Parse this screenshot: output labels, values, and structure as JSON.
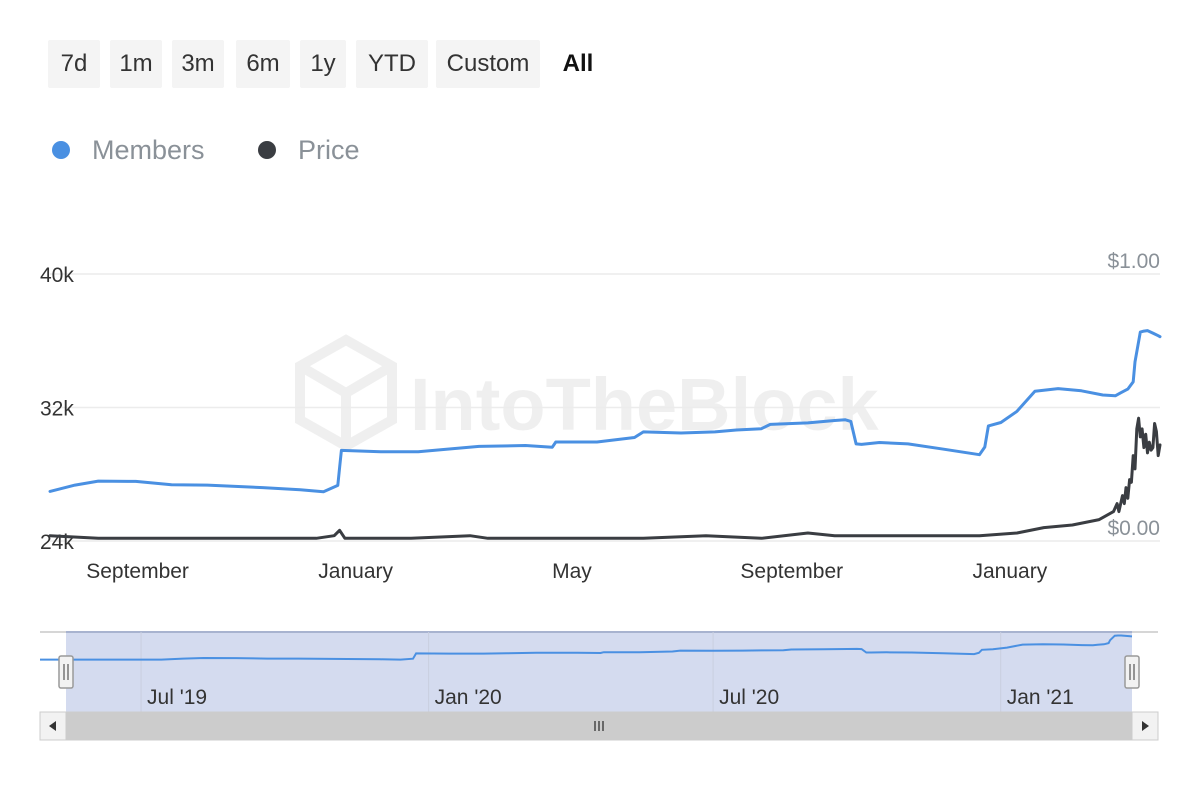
{
  "range_selector": {
    "buttons": [
      {
        "label": "7d",
        "active": false
      },
      {
        "label": "1m",
        "active": false
      },
      {
        "label": "3m",
        "active": false
      },
      {
        "label": "6m",
        "active": false
      },
      {
        "label": "1y",
        "active": false
      },
      {
        "label": "YTD",
        "active": false
      },
      {
        "label": "Custom",
        "active": false
      },
      {
        "label": "All",
        "active": true
      }
    ]
  },
  "watermark": "IntoTheBlock",
  "colors": {
    "members": "#4a90e2",
    "price": "#3a3d42",
    "navigator_fill": "#d4dbef",
    "grid": "#ececec"
  },
  "chart_data": {
    "type": "line",
    "legend": [
      {
        "name": "Members",
        "color": "#4a90e2"
      },
      {
        "name": "Price",
        "color": "#3a3d42"
      }
    ],
    "x_tick_labels": [
      "September",
      "January",
      "May",
      "September",
      "January"
    ],
    "x_ticks": [
      "2019-09-01",
      "2020-01-01",
      "2020-05-01",
      "2020-09-01",
      "2021-01-01"
    ],
    "x_range": [
      "2019-07-14",
      "2021-03-26"
    ],
    "y_left": {
      "range": [
        24000,
        40000
      ],
      "ticks": [
        24000,
        32000,
        40000
      ],
      "tick_labels": [
        "24k",
        "32k",
        "40k"
      ]
    },
    "y_right": {
      "range": [
        0,
        1
      ],
      "ticks": [
        0,
        1
      ],
      "tick_labels": [
        "$0.00",
        "$1.00"
      ]
    },
    "series": [
      {
        "name": "Members",
        "axis": "left",
        "points": [
          [
            "2019-07-14",
            26970
          ],
          [
            "2019-07-28",
            27350
          ],
          [
            "2019-08-10",
            27590
          ],
          [
            "2019-08-31",
            27570
          ],
          [
            "2019-09-20",
            27370
          ],
          [
            "2019-10-10",
            27350
          ],
          [
            "2019-11-10",
            27200
          ],
          [
            "2019-12-01",
            27070
          ],
          [
            "2019-12-14",
            26950
          ],
          [
            "2019-12-22",
            27330
          ],
          [
            "2019-12-23",
            28400
          ],
          [
            "2019-12-24",
            29430
          ],
          [
            "2020-01-15",
            29350
          ],
          [
            "2020-02-05",
            29350
          ],
          [
            "2020-02-20",
            29490
          ],
          [
            "2020-03-10",
            29670
          ],
          [
            "2020-04-05",
            29720
          ],
          [
            "2020-04-20",
            29620
          ],
          [
            "2020-04-22",
            29930
          ],
          [
            "2020-05-15",
            29930
          ],
          [
            "2020-06-05",
            30200
          ],
          [
            "2020-06-10",
            30540
          ],
          [
            "2020-07-01",
            30470
          ],
          [
            "2020-07-20",
            30540
          ],
          [
            "2020-08-01",
            30650
          ],
          [
            "2020-08-15",
            30730
          ],
          [
            "2020-08-20",
            30990
          ],
          [
            "2020-09-10",
            31080
          ],
          [
            "2020-09-25",
            31220
          ],
          [
            "2020-10-01",
            31260
          ],
          [
            "2020-10-04",
            31170
          ],
          [
            "2020-10-07",
            29820
          ],
          [
            "2020-10-10",
            29790
          ],
          [
            "2020-10-20",
            29900
          ],
          [
            "2020-11-05",
            29820
          ],
          [
            "2020-11-25",
            29500
          ],
          [
            "2020-12-15",
            29170
          ],
          [
            "2020-12-18",
            29630
          ],
          [
            "2020-12-20",
            30900
          ],
          [
            "2020-12-27",
            31100
          ],
          [
            "2021-01-05",
            31770
          ],
          [
            "2021-01-15",
            32970
          ],
          [
            "2021-01-28",
            33130
          ],
          [
            "2021-02-10",
            33000
          ],
          [
            "2021-02-22",
            32750
          ],
          [
            "2021-03-01",
            32700
          ],
          [
            "2021-03-04",
            32880
          ],
          [
            "2021-03-08",
            33100
          ],
          [
            "2021-03-11",
            33540
          ],
          [
            "2021-03-12",
            34730
          ],
          [
            "2021-03-15",
            36520
          ],
          [
            "2021-03-17",
            36580
          ],
          [
            "2021-03-19",
            36610
          ],
          [
            "2021-03-22",
            36460
          ],
          [
            "2021-03-25",
            36300
          ],
          [
            "2021-03-26",
            36240
          ]
        ]
      },
      {
        "name": "Price",
        "axis": "right",
        "points": [
          [
            "2019-07-14",
            0.02
          ],
          [
            "2019-08-10",
            0.01
          ],
          [
            "2019-09-20",
            0.01
          ],
          [
            "2019-10-30",
            0.01
          ],
          [
            "2019-12-10",
            0.01
          ],
          [
            "2019-12-20",
            0.02
          ],
          [
            "2019-12-23",
            0.04
          ],
          [
            "2019-12-26",
            0.01
          ],
          [
            "2020-02-01",
            0.01
          ],
          [
            "2020-03-05",
            0.02
          ],
          [
            "2020-03-15",
            0.01
          ],
          [
            "2020-05-01",
            0.01
          ],
          [
            "2020-06-10",
            0.01
          ],
          [
            "2020-07-15",
            0.02
          ],
          [
            "2020-08-15",
            0.01
          ],
          [
            "2020-09-10",
            0.03
          ],
          [
            "2020-09-25",
            0.02
          ],
          [
            "2020-10-20",
            0.02
          ],
          [
            "2020-11-20",
            0.02
          ],
          [
            "2020-12-15",
            0.02
          ],
          [
            "2021-01-05",
            0.03
          ],
          [
            "2021-01-20",
            0.05
          ],
          [
            "2021-02-05",
            0.06
          ],
          [
            "2021-02-20",
            0.08
          ],
          [
            "2021-02-28",
            0.11
          ],
          [
            "2021-03-02",
            0.14
          ],
          [
            "2021-03-03",
            0.11
          ],
          [
            "2021-03-05",
            0.17
          ],
          [
            "2021-03-06",
            0.14
          ],
          [
            "2021-03-07",
            0.2
          ],
          [
            "2021-03-08",
            0.16
          ],
          [
            "2021-03-09",
            0.23
          ],
          [
            "2021-03-10",
            0.22
          ],
          [
            "2021-03-11",
            0.32
          ],
          [
            "2021-03-12",
            0.27
          ],
          [
            "2021-03-13",
            0.42
          ],
          [
            "2021-03-14",
            0.46
          ],
          [
            "2021-03-15",
            0.39
          ],
          [
            "2021-03-16",
            0.42
          ],
          [
            "2021-03-17",
            0.35
          ],
          [
            "2021-03-18",
            0.4
          ],
          [
            "2021-03-19",
            0.33
          ],
          [
            "2021-03-20",
            0.37
          ],
          [
            "2021-03-21",
            0.34
          ],
          [
            "2021-03-22",
            0.35
          ],
          [
            "2021-03-23",
            0.44
          ],
          [
            "2021-03-24",
            0.41
          ],
          [
            "2021-03-25",
            0.32
          ],
          [
            "2021-03-26",
            0.36
          ]
        ]
      }
    ],
    "grid": true,
    "legend_position": "top-left"
  },
  "navigator": {
    "tick_labels": [
      "Jul '19",
      "Jan '20",
      "Jul '20",
      "Jan '21"
    ],
    "ticks": [
      "2019-07-01",
      "2020-01-01",
      "2020-07-01",
      "2021-01-01"
    ],
    "range": [
      "2019-05-14",
      "2021-03-26"
    ],
    "selected": [
      "2019-05-14",
      "2021-03-26"
    ],
    "scroll_left_icon": "triangle-left-icon",
    "scroll_right_icon": "triangle-right-icon",
    "handle_icon": "grip-icon"
  }
}
